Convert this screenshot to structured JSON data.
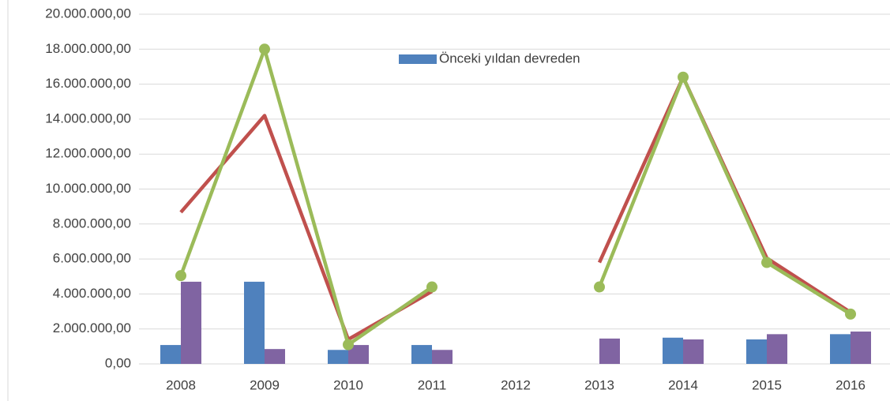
{
  "chart_data": {
    "type": "combo",
    "categories": [
      "2008",
      "2009",
      "2010",
      "2011",
      "2012",
      "2013",
      "2014",
      "2015",
      "2016"
    ],
    "series": [
      {
        "name": "Önceki yıldan devreden",
        "type": "bar",
        "color": "#4f81bd",
        "values": [
          1080000,
          4700000,
          800000,
          1080000,
          null,
          null,
          1500000,
          1400000,
          1700000
        ]
      },
      {
        "type": "bar",
        "color": "#8064a2",
        "values": [
          4700000,
          850000,
          1080000,
          800000,
          null,
          1450000,
          1400000,
          1700000,
          1850000
        ]
      },
      {
        "type": "line",
        "color": "#c0504d",
        "values": [
          8670000,
          14200000,
          1400000,
          4150000,
          null,
          5800000,
          16400000,
          6050000,
          2950000
        ]
      },
      {
        "type": "line",
        "color": "#9bbb59",
        "markers": true,
        "values": [
          5050000,
          18000000,
          1100000,
          4400000,
          null,
          4400000,
          16400000,
          5800000,
          2850000
        ]
      }
    ],
    "ylim": [
      0,
      20000000
    ],
    "yticks": [
      {
        "value": 0,
        "label": "0,00"
      },
      {
        "value": 2000000,
        "label": "2.000.000,00"
      },
      {
        "value": 4000000,
        "label": "4.000.000,00"
      },
      {
        "value": 6000000,
        "label": "6.000.000,00"
      },
      {
        "value": 8000000,
        "label": "8.000.000,00"
      },
      {
        "value": 10000000,
        "label": "10.000.000,00"
      },
      {
        "value": 12000000,
        "label": "12.000.000,00"
      },
      {
        "value": 14000000,
        "label": "14.000.000,00"
      },
      {
        "value": 16000000,
        "label": "16.000.000,00"
      },
      {
        "value": 18000000,
        "label": "18.000.000,00"
      },
      {
        "value": 20000000,
        "label": "20.000.000,00"
      }
    ],
    "grid": true
  }
}
